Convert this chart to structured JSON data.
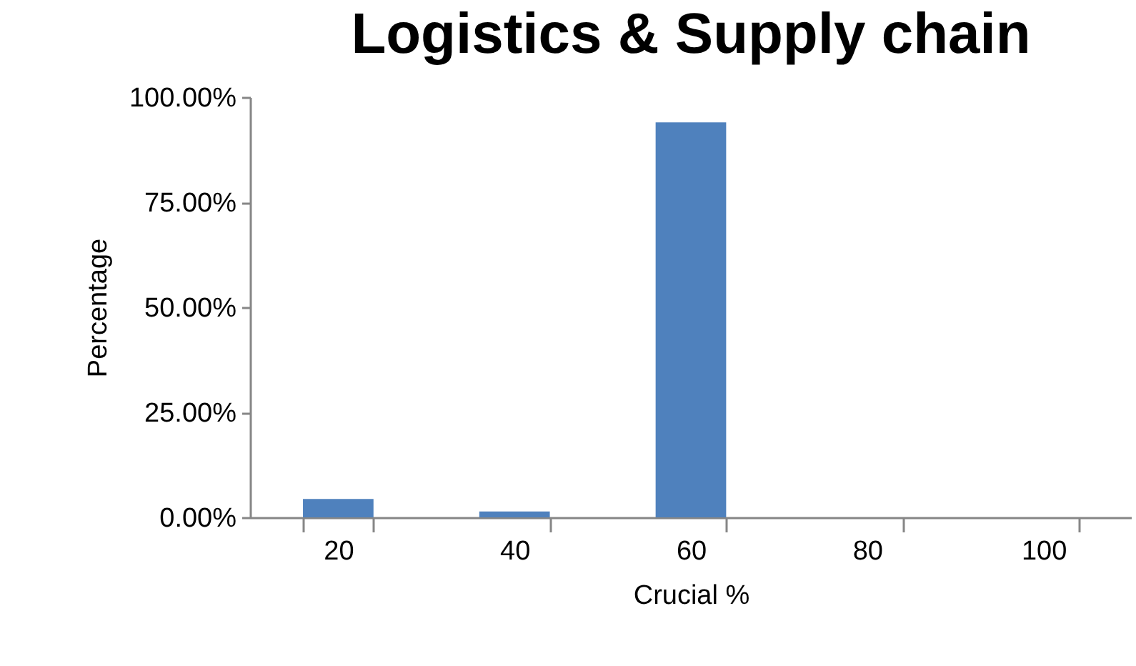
{
  "chart_data": {
    "type": "bar",
    "title": "Logistics & Supply chain",
    "xlabel": "Crucial %",
    "ylabel": "Percentage",
    "categories": [
      "20",
      "40",
      "60",
      "80",
      "100"
    ],
    "values": [
      4.4,
      1.4,
      94.0,
      0,
      0
    ],
    "color": "#4f81bd",
    "ylim": [
      0,
      100
    ],
    "yticks": [
      {
        "value": 0,
        "label": "0.00%"
      },
      {
        "value": 25,
        "label": "25.00%"
      },
      {
        "value": 50,
        "label": "50.00%"
      },
      {
        "value": 75,
        "label": "75.00%"
      },
      {
        "value": 100,
        "label": "100.00%"
      }
    ],
    "grid": false
  }
}
